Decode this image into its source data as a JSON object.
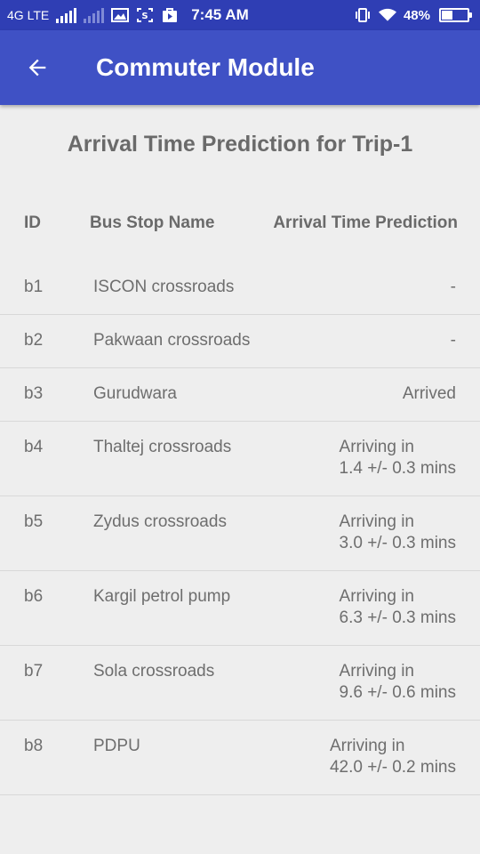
{
  "status_bar": {
    "network": "4G LTE",
    "icons": [
      "signal-icon",
      "signal-weak-icon",
      "image-icon",
      "screenshot-icon",
      "play-store-icon"
    ],
    "time": "7:45 AM",
    "right_icons": [
      "vibrate-icon",
      "wifi-icon"
    ],
    "battery_percent": "48%",
    "battery_level": 0.48
  },
  "app_bar": {
    "title": "Commuter Module",
    "back_icon": "arrow-back-icon"
  },
  "heading": "Arrival Time Prediction for Trip-1",
  "table": {
    "headers": {
      "id": "ID",
      "name": "Bus Stop Name",
      "arrival": "Arrival Time Prediction"
    },
    "rows": [
      {
        "id": "b1",
        "name": "ISCON crossroads",
        "arrival_1": "-",
        "arrival_2": ""
      },
      {
        "id": "b2",
        "name": "Pakwaan crossroads",
        "arrival_1": "-",
        "arrival_2": ""
      },
      {
        "id": "b3",
        "name": "Gurudwara",
        "arrival_1": "Arrived",
        "arrival_2": ""
      },
      {
        "id": "b4",
        "name": "Thaltej crossroads",
        "arrival_1": "Arriving in",
        "arrival_2": "1.4 +/- 0.3 mins"
      },
      {
        "id": "b5",
        "name": "Zydus crossroads",
        "arrival_1": "Arriving in",
        "arrival_2": "3.0 +/- 0.3 mins"
      },
      {
        "id": "b6",
        "name": "Kargil petrol pump",
        "arrival_1": "Arriving in",
        "arrival_2": "6.3 +/- 0.3 mins"
      },
      {
        "id": "b7",
        "name": "Sola crossroads",
        "arrival_1": "Arriving in",
        "arrival_2": "9.6 +/- 0.6 mins"
      },
      {
        "id": "b8",
        "name": "PDPU",
        "arrival_1": "Arriving in",
        "arrival_2": "42.0 +/- 0.2 mins"
      }
    ]
  },
  "colors": {
    "status_bar": "#2f3eb4",
    "app_bar": "#3f51c5",
    "background": "#eeeeee",
    "text": "#6e6e6e"
  }
}
